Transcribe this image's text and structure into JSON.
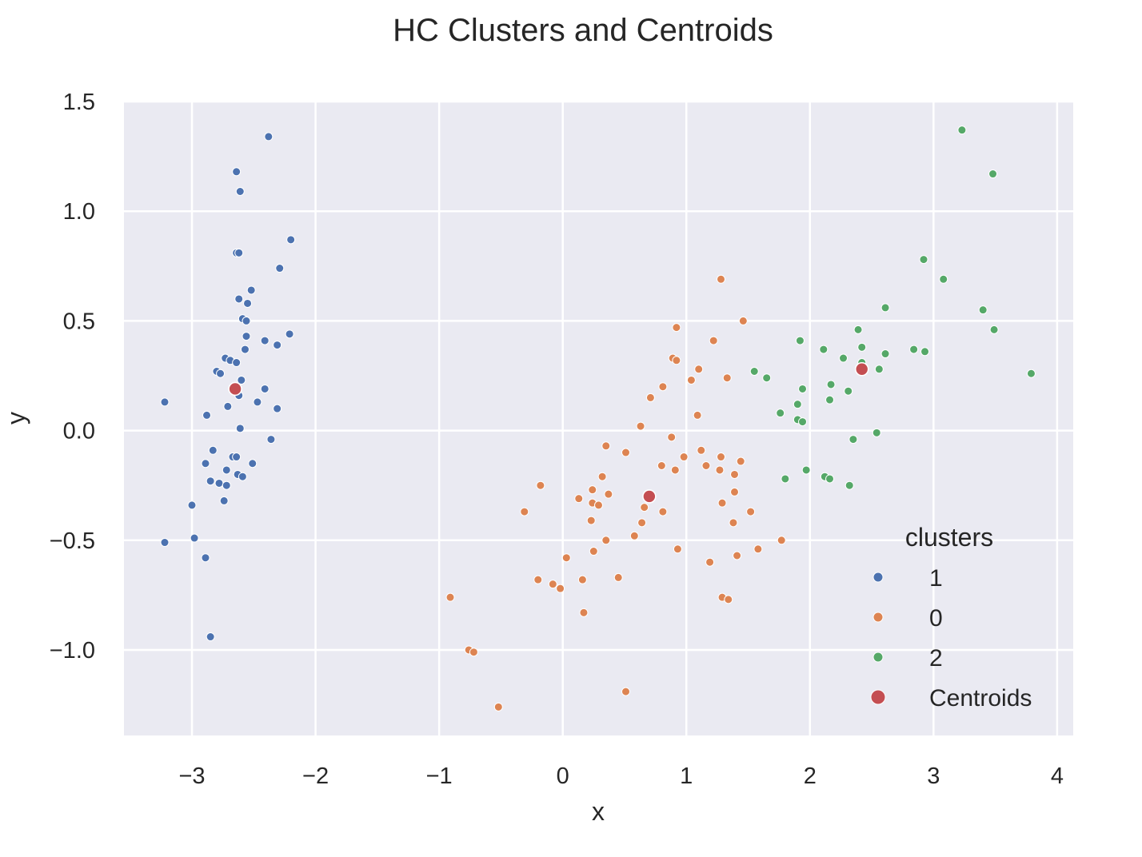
{
  "chart_data": {
    "type": "scatter",
    "title": "HC Clusters and Centroids",
    "xlabel": "x",
    "ylabel": "y",
    "xlim": [
      -3.55,
      4.13
    ],
    "ylim": [
      -1.39,
      1.5
    ],
    "xticks": [
      -3,
      -2,
      -1,
      0,
      1,
      2,
      3,
      4
    ],
    "yticks": [
      -1.0,
      -0.5,
      0.0,
      0.5,
      1.0,
      1.5
    ],
    "xtick_labels": [
      "−3",
      "−2",
      "−1",
      "0",
      "1",
      "2",
      "3",
      "4"
    ],
    "ytick_labels": [
      "−1.0",
      "−0.5",
      "0.0",
      "0.5",
      "1.0",
      "1.5"
    ],
    "grid": true,
    "background": "#eaeaf2",
    "legend": {
      "title": "clusters",
      "placement": "lower-right",
      "entries": [
        {
          "label": "1",
          "color": "#4c72b0"
        },
        {
          "label": "0",
          "color": "#dd8452"
        },
        {
          "label": "2",
          "color": "#55a868"
        },
        {
          "label": "Centroids",
          "color": "#c44e52"
        }
      ]
    },
    "series": [
      {
        "name": "1",
        "color": "#4c72b0",
        "points": [
          [
            -2.38,
            1.34
          ],
          [
            -2.64,
            1.18
          ],
          [
            -2.61,
            1.09
          ],
          [
            -2.2,
            0.87
          ],
          [
            -2.29,
            0.74
          ],
          [
            -2.64,
            0.81
          ],
          [
            -2.62,
            0.81
          ],
          [
            -2.52,
            0.64
          ],
          [
            -2.62,
            0.6
          ],
          [
            -2.55,
            0.58
          ],
          [
            -2.59,
            0.51
          ],
          [
            -2.56,
            0.5
          ],
          [
            -2.21,
            0.44
          ],
          [
            -2.56,
            0.43
          ],
          [
            -2.41,
            0.41
          ],
          [
            -2.31,
            0.39
          ],
          [
            -2.57,
            0.37
          ],
          [
            -2.73,
            0.33
          ],
          [
            -2.69,
            0.32
          ],
          [
            -2.64,
            0.31
          ],
          [
            -2.8,
            0.27
          ],
          [
            -2.77,
            0.26
          ],
          [
            -2.6,
            0.23
          ],
          [
            -2.41,
            0.19
          ],
          [
            -2.62,
            0.16
          ],
          [
            -2.47,
            0.13
          ],
          [
            -3.22,
            0.13
          ],
          [
            -2.71,
            0.11
          ],
          [
            -2.31,
            0.1
          ],
          [
            -2.88,
            0.07
          ],
          [
            -2.61,
            0.01
          ],
          [
            -2.36,
            -0.04
          ],
          [
            -2.83,
            -0.09
          ],
          [
            -2.67,
            -0.12
          ],
          [
            -2.64,
            -0.12
          ],
          [
            -2.51,
            -0.15
          ],
          [
            -2.89,
            -0.15
          ],
          [
            -2.72,
            -0.18
          ],
          [
            -2.63,
            -0.2
          ],
          [
            -2.59,
            -0.21
          ],
          [
            -2.85,
            -0.23
          ],
          [
            -2.78,
            -0.24
          ],
          [
            -2.72,
            -0.25
          ],
          [
            -2.74,
            -0.32
          ],
          [
            -3.0,
            -0.34
          ],
          [
            -2.98,
            -0.49
          ],
          [
            -3.22,
            -0.51
          ],
          [
            -2.89,
            -0.58
          ],
          [
            -2.85,
            -0.94
          ]
        ]
      },
      {
        "name": "0",
        "color": "#dd8452",
        "points": [
          [
            1.28,
            0.69
          ],
          [
            1.46,
            0.5
          ],
          [
            0.92,
            0.47
          ],
          [
            1.22,
            0.41
          ],
          [
            0.89,
            0.33
          ],
          [
            0.92,
            0.32
          ],
          [
            1.1,
            0.28
          ],
          [
            1.33,
            0.24
          ],
          [
            1.04,
            0.23
          ],
          [
            0.81,
            0.2
          ],
          [
            0.71,
            0.15
          ],
          [
            1.09,
            0.07
          ],
          [
            0.63,
            0.02
          ],
          [
            0.88,
            -0.03
          ],
          [
            0.35,
            -0.07
          ],
          [
            1.12,
            -0.09
          ],
          [
            0.51,
            -0.1
          ],
          [
            1.28,
            -0.12
          ],
          [
            0.98,
            -0.12
          ],
          [
            1.44,
            -0.14
          ],
          [
            1.16,
            -0.16
          ],
          [
            0.8,
            -0.16
          ],
          [
            1.27,
            -0.18
          ],
          [
            0.91,
            -0.18
          ],
          [
            1.39,
            -0.2
          ],
          [
            0.32,
            -0.21
          ],
          [
            -0.18,
            -0.25
          ],
          [
            0.24,
            -0.27
          ],
          [
            1.39,
            -0.28
          ],
          [
            0.37,
            -0.29
          ],
          [
            0.13,
            -0.31
          ],
          [
            0.24,
            -0.33
          ],
          [
            1.29,
            -0.33
          ],
          [
            0.29,
            -0.34
          ],
          [
            0.66,
            -0.35
          ],
          [
            -0.31,
            -0.37
          ],
          [
            0.81,
            -0.37
          ],
          [
            1.52,
            -0.37
          ],
          [
            0.23,
            -0.41
          ],
          [
            0.64,
            -0.42
          ],
          [
            1.38,
            -0.42
          ],
          [
            0.58,
            -0.48
          ],
          [
            0.35,
            -0.5
          ],
          [
            1.77,
            -0.5
          ],
          [
            1.58,
            -0.54
          ],
          [
            0.93,
            -0.54
          ],
          [
            0.25,
            -0.55
          ],
          [
            1.41,
            -0.57
          ],
          [
            0.03,
            -0.58
          ],
          [
            1.19,
            -0.6
          ],
          [
            0.45,
            -0.67
          ],
          [
            -0.2,
            -0.68
          ],
          [
            0.16,
            -0.68
          ],
          [
            -0.08,
            -0.7
          ],
          [
            -0.02,
            -0.72
          ],
          [
            -0.91,
            -0.76
          ],
          [
            1.29,
            -0.76
          ],
          [
            1.34,
            -0.77
          ],
          [
            0.17,
            -0.83
          ],
          [
            -0.76,
            -1.0
          ],
          [
            -0.72,
            -1.01
          ],
          [
            0.51,
            -1.19
          ],
          [
            -0.52,
            -1.26
          ]
        ]
      },
      {
        "name": "2",
        "color": "#55a868",
        "points": [
          [
            3.23,
            1.37
          ],
          [
            3.48,
            1.17
          ],
          [
            2.92,
            0.78
          ],
          [
            3.08,
            0.69
          ],
          [
            2.61,
            0.56
          ],
          [
            3.4,
            0.55
          ],
          [
            3.49,
            0.46
          ],
          [
            2.39,
            0.46
          ],
          [
            1.92,
            0.41
          ],
          [
            2.11,
            0.37
          ],
          [
            2.42,
            0.38
          ],
          [
            2.84,
            0.37
          ],
          [
            2.93,
            0.36
          ],
          [
            2.61,
            0.35
          ],
          [
            2.27,
            0.33
          ],
          [
            2.42,
            0.31
          ],
          [
            2.56,
            0.28
          ],
          [
            1.55,
            0.27
          ],
          [
            3.79,
            0.26
          ],
          [
            1.65,
            0.24
          ],
          [
            2.17,
            0.21
          ],
          [
            1.94,
            0.19
          ],
          [
            2.31,
            0.18
          ],
          [
            2.16,
            0.14
          ],
          [
            1.9,
            0.12
          ],
          [
            1.76,
            0.08
          ],
          [
            1.9,
            0.05
          ],
          [
            1.94,
            0.04
          ],
          [
            2.54,
            -0.01
          ],
          [
            2.35,
            -0.04
          ],
          [
            1.97,
            -0.18
          ],
          [
            2.12,
            -0.21
          ],
          [
            1.8,
            -0.22
          ],
          [
            2.16,
            -0.22
          ],
          [
            2.32,
            -0.25
          ]
        ]
      },
      {
        "name": "Centroids",
        "color": "#c44e52",
        "points": [
          [
            -2.65,
            0.19
          ],
          [
            0.7,
            -0.3
          ],
          [
            2.42,
            0.28
          ]
        ]
      }
    ]
  }
}
